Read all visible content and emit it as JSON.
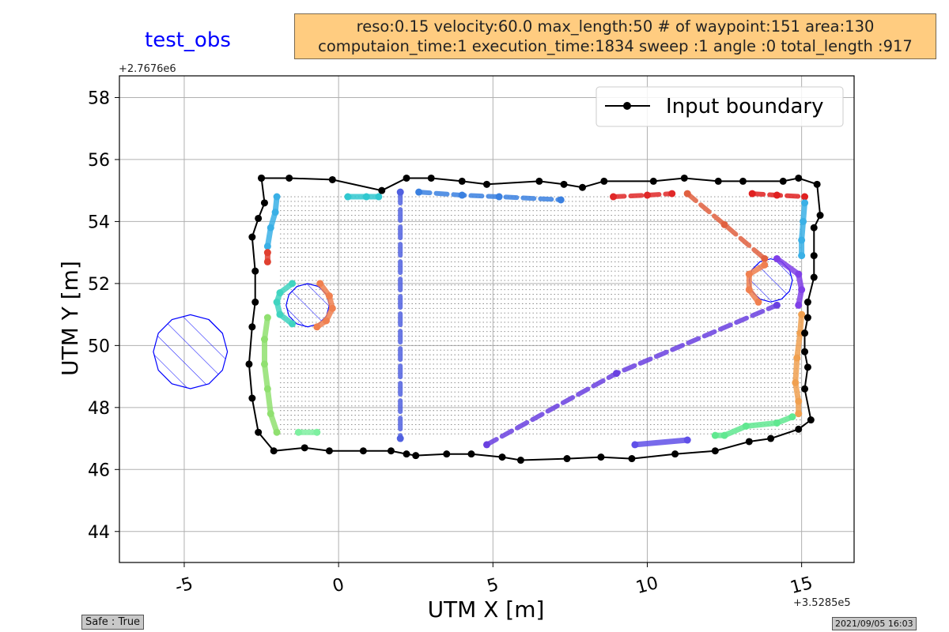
{
  "header": {
    "title": "test_obs",
    "info_line1": "reso:0.15  velocity:60.0 max_length:50 # of waypoint:151 area:130",
    "info_line2": "computaion_time:1 execution_time:1834 sweep :1 angle :0 total_length :917"
  },
  "footer": {
    "safe_label": "Safe : True",
    "timestamp": "2021/09/05 16:03"
  },
  "colors": {
    "boundary": "#000000",
    "obstacle": "#0000ff",
    "grid": "#b0b0b0",
    "infobox_bg": "#ffcc80"
  },
  "chart_data": {
    "type": "scatter",
    "title": "test_obs",
    "xlabel": "UTM X [m]",
    "ylabel": "UTM Y [m]",
    "x_offset_label": "+3.5285e5",
    "y_offset_label": "+2.7676e6",
    "xlim": [
      -7.1,
      16.7
    ],
    "ylim": [
      43.0,
      58.7
    ],
    "x_ticks": [
      -5,
      0,
      5,
      10,
      15
    ],
    "y_ticks": [
      44,
      46,
      48,
      50,
      52,
      54,
      56,
      58
    ],
    "x_tick_labels": [
      "-5",
      "0",
      "5",
      "10",
      "15"
    ],
    "y_tick_labels": [
      "44",
      "46",
      "48",
      "50",
      "52",
      "54",
      "56",
      "58"
    ],
    "grid": true,
    "legend": {
      "position": "top-right",
      "entries": [
        "Input boundary"
      ]
    },
    "boundary": {
      "name": "Input boundary",
      "points": [
        [
          -2.5,
          55.4
        ],
        [
          -1.6,
          55.4
        ],
        [
          -0.2,
          55.35
        ],
        [
          1.4,
          55.0
        ],
        [
          2.2,
          55.4
        ],
        [
          3.0,
          55.4
        ],
        [
          4.0,
          55.3
        ],
        [
          4.8,
          55.2
        ],
        [
          6.5,
          55.3
        ],
        [
          7.3,
          55.2
        ],
        [
          7.9,
          55.1
        ],
        [
          8.6,
          55.3
        ],
        [
          10.2,
          55.3
        ],
        [
          11.2,
          55.4
        ],
        [
          12.3,
          55.3
        ],
        [
          13.1,
          55.3
        ],
        [
          14.4,
          55.3
        ],
        [
          14.9,
          55.4
        ],
        [
          15.5,
          55.2
        ],
        [
          15.6,
          54.2
        ],
        [
          15.4,
          53.8
        ],
        [
          15.4,
          52.9
        ],
        [
          15.4,
          52.2
        ],
        [
          15.2,
          51.4
        ],
        [
          15.2,
          50.9
        ],
        [
          15.1,
          50.4
        ],
        [
          15.1,
          49.8
        ],
        [
          15.2,
          49.3
        ],
        [
          15.1,
          48.6
        ],
        [
          15.3,
          47.6
        ],
        [
          14.9,
          47.3
        ],
        [
          14.0,
          47.0
        ],
        [
          13.3,
          46.9
        ],
        [
          12.2,
          46.6
        ],
        [
          10.9,
          46.5
        ],
        [
          9.5,
          46.35
        ],
        [
          8.5,
          46.4
        ],
        [
          7.4,
          46.35
        ],
        [
          5.9,
          46.3
        ],
        [
          5.3,
          46.4
        ],
        [
          4.3,
          46.5
        ],
        [
          3.5,
          46.5
        ],
        [
          2.5,
          46.45
        ],
        [
          2.2,
          46.5
        ],
        [
          1.7,
          46.6
        ],
        [
          0.8,
          46.6
        ],
        [
          -0.3,
          46.6
        ],
        [
          -1.1,
          46.7
        ],
        [
          -2.1,
          46.6
        ],
        [
          -2.6,
          47.2
        ],
        [
          -2.8,
          48.3
        ],
        [
          -2.9,
          49.4
        ],
        [
          -2.8,
          50.6
        ],
        [
          -2.7,
          51.4
        ],
        [
          -2.7,
          52.4
        ],
        [
          -2.8,
          53.5
        ],
        [
          -2.6,
          54.1
        ],
        [
          -2.4,
          54.6
        ],
        [
          -2.5,
          55.4
        ]
      ]
    },
    "obstacles": [
      {
        "center": [
          -4.8,
          49.8
        ],
        "radius": 1.2
      },
      {
        "center": [
          -1.0,
          51.3
        ],
        "radius": 0.7
      },
      {
        "center": [
          14.0,
          52.1
        ],
        "radius": 0.7
      }
    ],
    "path_segments": [
      {
        "color": "#3ab0e6",
        "points": [
          [
            -2.0,
            54.8
          ],
          [
            -2.05,
            54.3
          ],
          [
            -2.2,
            53.8
          ],
          [
            -2.3,
            53.2
          ]
        ]
      },
      {
        "color": "#e04030",
        "points": [
          [
            -2.3,
            53.0
          ],
          [
            -2.3,
            52.7
          ]
        ]
      },
      {
        "color": "#40d4c0",
        "points": [
          [
            -1.5,
            52.0
          ],
          [
            -1.9,
            51.7
          ],
          [
            -2.0,
            51.4
          ],
          [
            -1.9,
            51.0
          ],
          [
            -1.5,
            50.7
          ]
        ]
      },
      {
        "color": "#f08050",
        "points": [
          [
            -0.6,
            52.0
          ],
          [
            -0.3,
            51.6
          ],
          [
            -0.2,
            51.2
          ],
          [
            -0.4,
            50.8
          ],
          [
            -0.7,
            50.6
          ]
        ]
      },
      {
        "color": "#90e070",
        "points": [
          [
            -2.3,
            50.9
          ],
          [
            -2.4,
            50.2
          ],
          [
            -2.4,
            49.4
          ],
          [
            -2.3,
            48.6
          ],
          [
            -2.2,
            47.8
          ],
          [
            -2.0,
            47.2
          ]
        ]
      },
      {
        "color": "#7ef0a0",
        "points": [
          [
            -1.3,
            47.2
          ],
          [
            -0.7,
            47.2
          ]
        ]
      },
      {
        "color": "#30c8d0",
        "points": [
          [
            0.3,
            54.8
          ],
          [
            0.9,
            54.8
          ],
          [
            1.3,
            54.8
          ]
        ]
      },
      {
        "color": "#5060e0",
        "dash": true,
        "points": [
          [
            2.0,
            54.95
          ],
          [
            2.0,
            47.0
          ]
        ]
      },
      {
        "color": "#3a80e0",
        "dash": true,
        "points": [
          [
            2.6,
            54.95
          ],
          [
            4.0,
            54.85
          ],
          [
            5.2,
            54.8
          ],
          [
            7.2,
            54.7
          ]
        ]
      },
      {
        "color": "#e02828",
        "dash": true,
        "points": [
          [
            8.9,
            54.8
          ],
          [
            10.0,
            54.85
          ],
          [
            10.8,
            54.9
          ]
        ]
      },
      {
        "color": "#e06040",
        "dash": true,
        "points": [
          [
            11.3,
            54.9
          ],
          [
            12.5,
            53.9
          ],
          [
            13.8,
            52.8
          ]
        ]
      },
      {
        "color": "#e02020",
        "dash": true,
        "points": [
          [
            13.4,
            54.9
          ],
          [
            14.2,
            54.85
          ],
          [
            15.1,
            54.8
          ]
        ]
      },
      {
        "color": "#3ab0e6",
        "points": [
          [
            15.1,
            54.6
          ],
          [
            15.05,
            54.0
          ],
          [
            15.0,
            53.4
          ],
          [
            15.0,
            52.9
          ]
        ]
      },
      {
        "color": "#f08050",
        "points": [
          [
            13.8,
            52.6
          ],
          [
            13.3,
            52.3
          ],
          [
            13.3,
            51.8
          ],
          [
            13.6,
            51.4
          ]
        ]
      },
      {
        "color": "#8040e8",
        "points": [
          [
            14.2,
            52.8
          ],
          [
            14.9,
            52.3
          ],
          [
            15.0,
            51.8
          ],
          [
            14.9,
            51.3
          ]
        ]
      },
      {
        "color": "#f0a050",
        "points": [
          [
            15.0,
            51.0
          ],
          [
            14.95,
            50.4
          ],
          [
            14.85,
            49.6
          ],
          [
            14.8,
            48.8
          ],
          [
            14.9,
            48.2
          ],
          [
            14.9,
            47.8
          ]
        ]
      },
      {
        "color": "#60e890",
        "points": [
          [
            14.7,
            47.7
          ],
          [
            14.2,
            47.5
          ],
          [
            13.2,
            47.4
          ],
          [
            12.5,
            47.1
          ],
          [
            12.2,
            47.1
          ]
        ]
      },
      {
        "color": "#6a40e0",
        "dash": true,
        "points": [
          [
            4.8,
            46.8
          ],
          [
            9.0,
            49.1
          ],
          [
            14.2,
            51.3
          ]
        ]
      },
      {
        "color": "#6050e8",
        "points": [
          [
            9.6,
            46.8
          ],
          [
            11.3,
            46.95
          ]
        ]
      }
    ]
  }
}
